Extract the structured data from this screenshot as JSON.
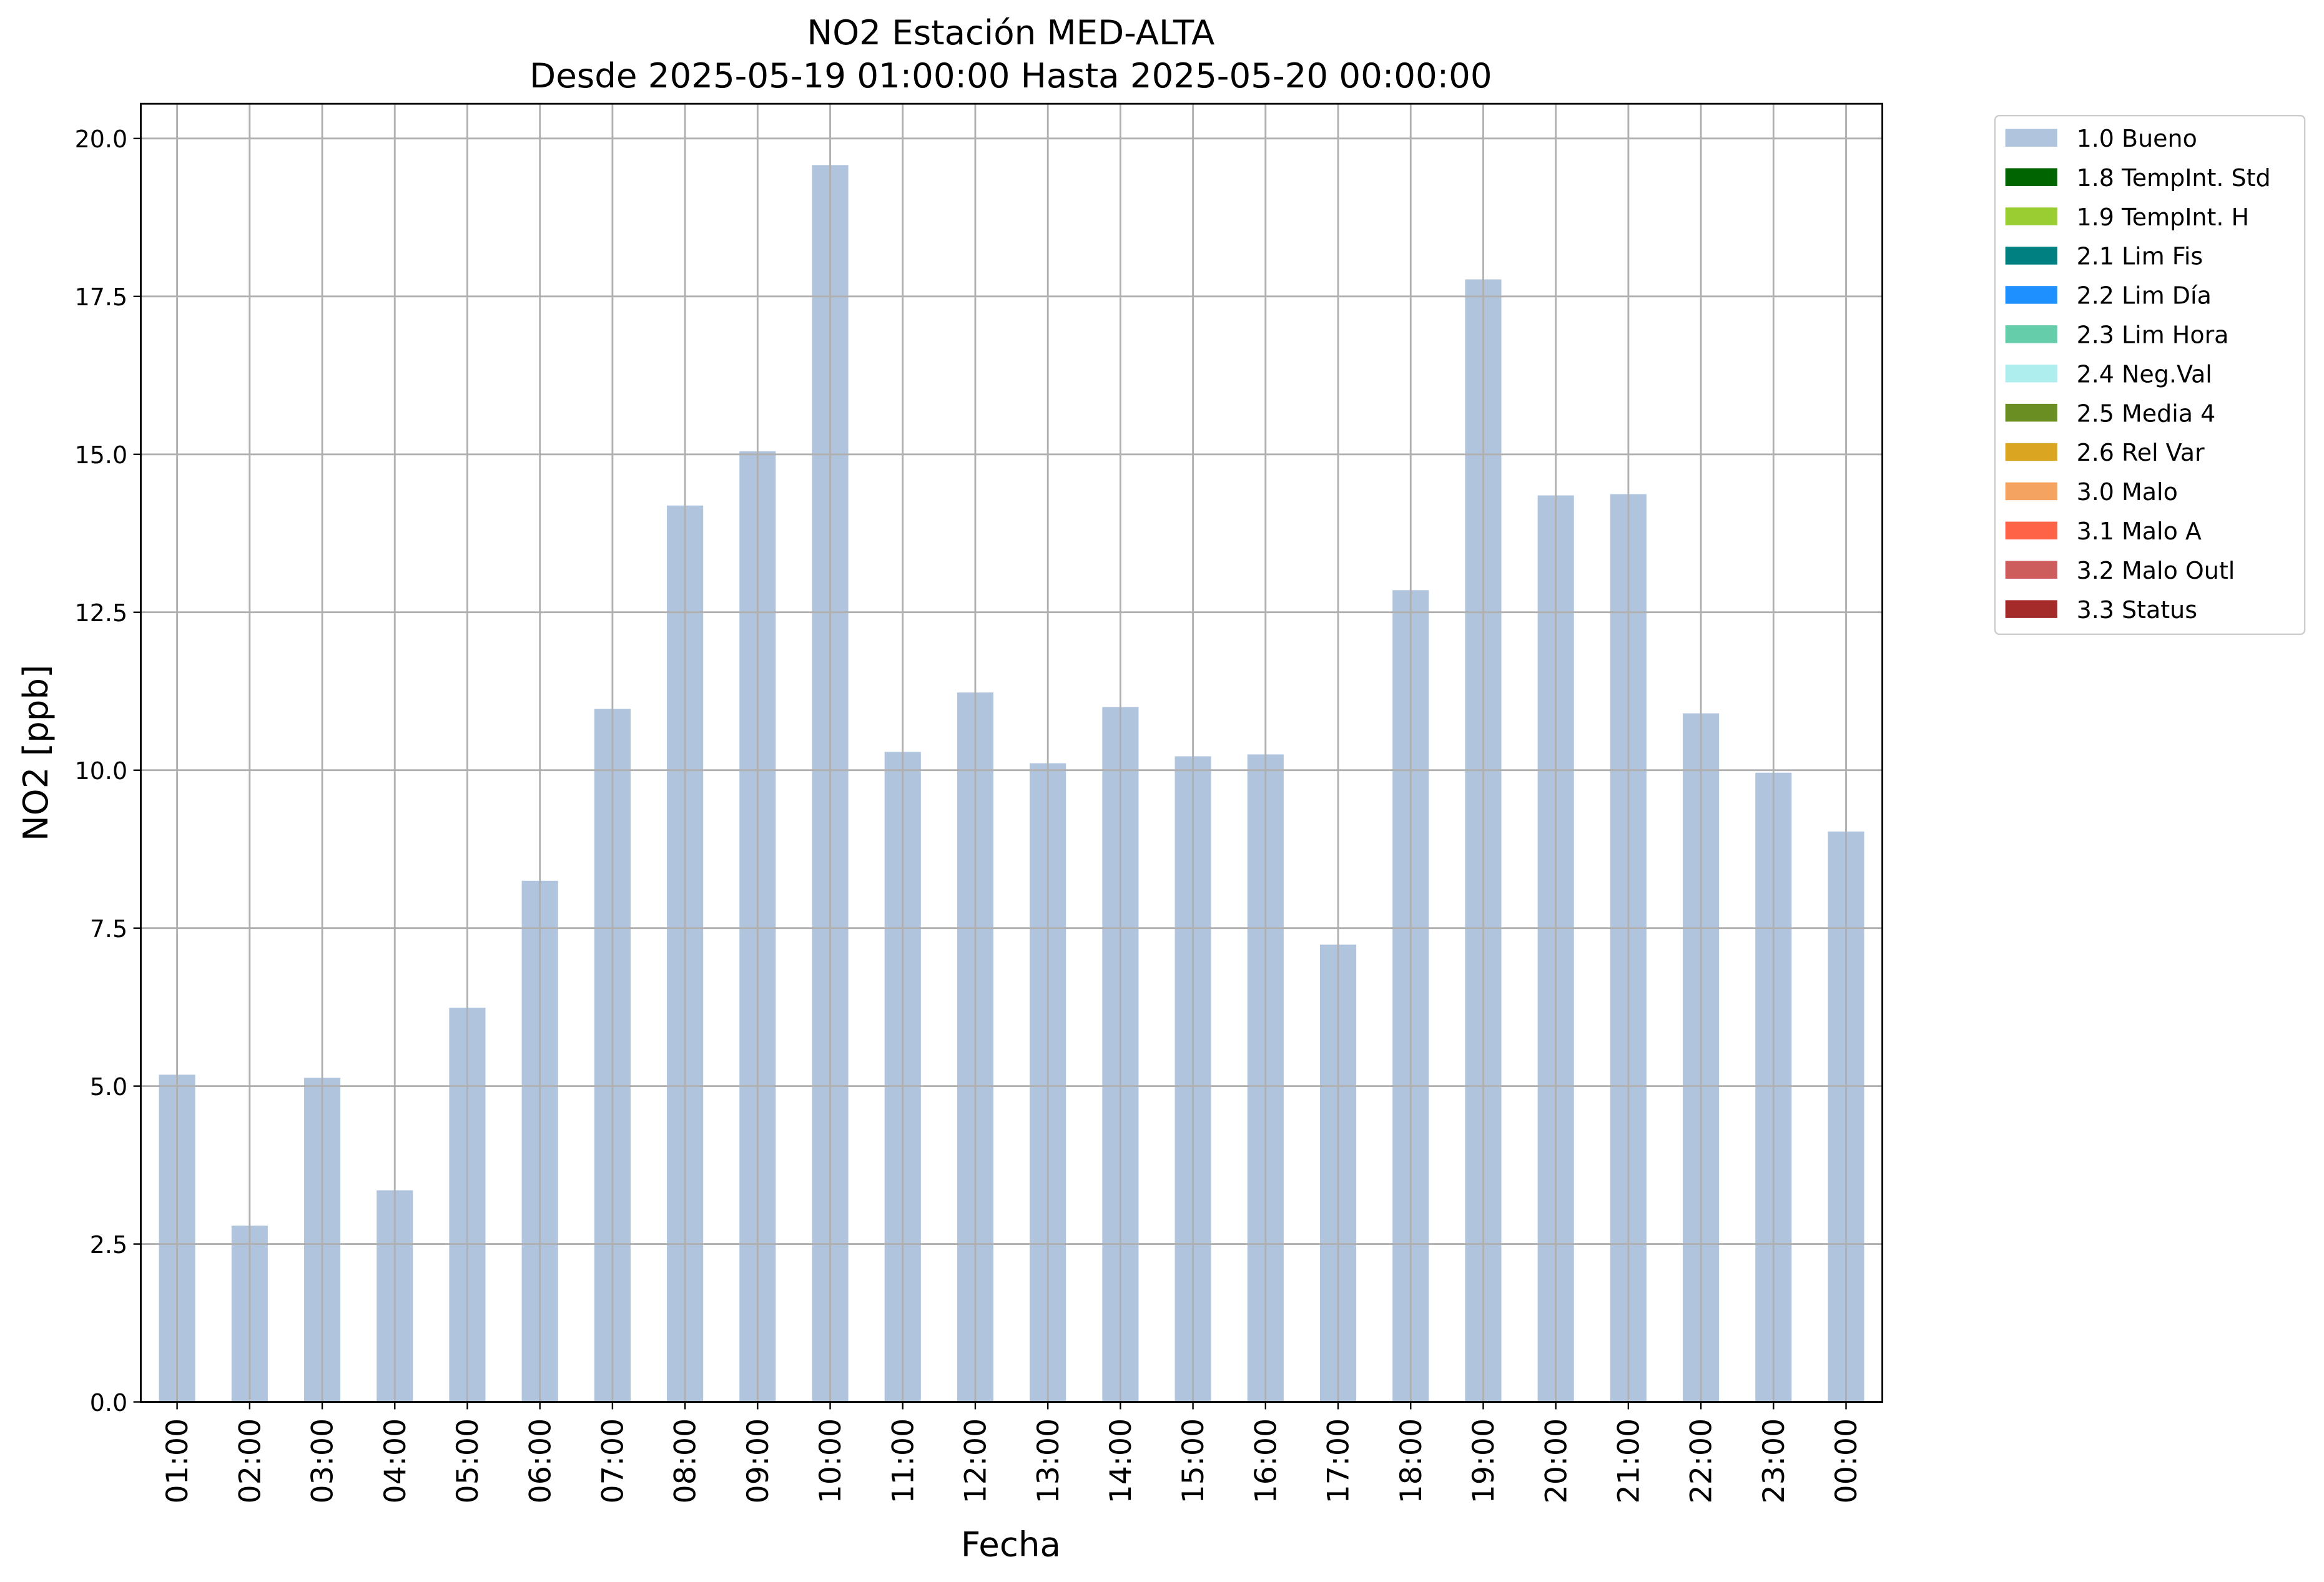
{
  "chart_data": {
    "type": "bar",
    "title": "NO2 Estación MED-ALTA",
    "subtitle": "Desde 2025-05-19 01:00:00 Hasta 2025-05-20 00:00:00",
    "x_label": "Fecha",
    "y_label": "NO2 [ppb]",
    "categories": [
      "01:00",
      "02:00",
      "03:00",
      "04:00",
      "05:00",
      "06:00",
      "07:00",
      "08:00",
      "09:00",
      "10:00",
      "11:00",
      "12:00",
      "13:00",
      "14:00",
      "15:00",
      "16:00",
      "17:00",
      "18:00",
      "19:00",
      "20:00",
      "21:00",
      "22:00",
      "23:00",
      "00:00"
    ],
    "series": [
      {
        "name": "1.0 Bueno",
        "color": "#b0c4de",
        "values": [
          5.18,
          2.79,
          5.13,
          3.35,
          6.24,
          8.25,
          10.97,
          14.19,
          15.05,
          19.58,
          10.29,
          11.23,
          10.11,
          11.0,
          10.22,
          10.25,
          7.24,
          12.85,
          17.77,
          14.35,
          14.37,
          10.9,
          9.96,
          9.03
        ]
      },
      {
        "name": "1.8 TempInt. Std",
        "color": "#006400",
        "values": [
          null,
          null,
          null,
          null,
          null,
          null,
          null,
          null,
          null,
          null,
          null,
          null,
          null,
          null,
          null,
          null,
          null,
          null,
          null,
          null,
          null,
          null,
          null,
          null
        ]
      },
      {
        "name": "1.9 TempInt. H",
        "color": "#9acd32",
        "values": [
          null,
          null,
          null,
          null,
          null,
          null,
          null,
          null,
          null,
          null,
          null,
          null,
          null,
          null,
          null,
          null,
          null,
          null,
          null,
          null,
          null,
          null,
          null,
          null
        ]
      },
      {
        "name": "2.1 Lim Fis",
        "color": "#008080",
        "values": [
          null,
          null,
          null,
          null,
          null,
          null,
          null,
          null,
          null,
          null,
          null,
          null,
          null,
          null,
          null,
          null,
          null,
          null,
          null,
          null,
          null,
          null,
          null,
          null
        ]
      },
      {
        "name": "2.2 Lim Día",
        "color": "#1e90ff",
        "values": [
          null,
          null,
          null,
          null,
          null,
          null,
          null,
          null,
          null,
          null,
          null,
          null,
          null,
          null,
          null,
          null,
          null,
          null,
          null,
          null,
          null,
          null,
          null,
          null
        ]
      },
      {
        "name": "2.3 Lim Hora",
        "color": "#66cdaa",
        "values": [
          null,
          null,
          null,
          null,
          null,
          null,
          null,
          null,
          null,
          null,
          null,
          null,
          null,
          null,
          null,
          null,
          null,
          null,
          null,
          null,
          null,
          null,
          null,
          null
        ]
      },
      {
        "name": "2.4 Neg.Val",
        "color": "#afeeee",
        "values": [
          null,
          null,
          null,
          null,
          null,
          null,
          null,
          null,
          null,
          null,
          null,
          null,
          null,
          null,
          null,
          null,
          null,
          null,
          null,
          null,
          null,
          null,
          null,
          null
        ]
      },
      {
        "name": "2.5 Media 4",
        "color": "#6b8e23",
        "values": [
          null,
          null,
          null,
          null,
          null,
          null,
          null,
          null,
          null,
          null,
          null,
          null,
          null,
          null,
          null,
          null,
          null,
          null,
          null,
          null,
          null,
          null,
          null,
          null
        ]
      },
      {
        "name": "2.6 Rel Var",
        "color": "#daa520",
        "values": [
          null,
          null,
          null,
          null,
          null,
          null,
          null,
          null,
          null,
          null,
          null,
          null,
          null,
          null,
          null,
          null,
          null,
          null,
          null,
          null,
          null,
          null,
          null,
          null
        ]
      },
      {
        "name": "3.0 Malo",
        "color": "#f4a460",
        "values": [
          null,
          null,
          null,
          null,
          null,
          null,
          null,
          null,
          null,
          null,
          null,
          null,
          null,
          null,
          null,
          null,
          null,
          null,
          null,
          null,
          null,
          null,
          null,
          null
        ]
      },
      {
        "name": "3.1 Malo A",
        "color": "#ff6347",
        "values": [
          null,
          null,
          null,
          null,
          null,
          null,
          null,
          null,
          null,
          null,
          null,
          null,
          null,
          null,
          null,
          null,
          null,
          null,
          null,
          null,
          null,
          null,
          null,
          null
        ]
      },
      {
        "name": "3.2 Malo Outl",
        "color": "#cd5c5c",
        "values": [
          null,
          null,
          null,
          null,
          null,
          null,
          null,
          null,
          null,
          null,
          null,
          null,
          null,
          null,
          null,
          null,
          null,
          null,
          null,
          null,
          null,
          null,
          null,
          null
        ]
      },
      {
        "name": "3.3 Status",
        "color": "#a52a2a",
        "values": [
          null,
          null,
          null,
          null,
          null,
          null,
          null,
          null,
          null,
          null,
          null,
          null,
          null,
          null,
          null,
          null,
          null,
          null,
          null,
          null,
          null,
          null,
          null,
          null
        ]
      }
    ],
    "ylim": [
      0,
      20.55
    ],
    "yticks": [
      {
        "value": 0,
        "label": "0.0"
      },
      2.5,
      {
        "value": 5,
        "label": "5.0"
      },
      7.5,
      {
        "value": 10,
        "label": "10.0"
      },
      12.5,
      {
        "value": 15,
        "label": "15.0"
      },
      17.5,
      {
        "value": 20,
        "label": "20.0"
      }
    ],
    "grid": true,
    "legend": "outside-right"
  }
}
